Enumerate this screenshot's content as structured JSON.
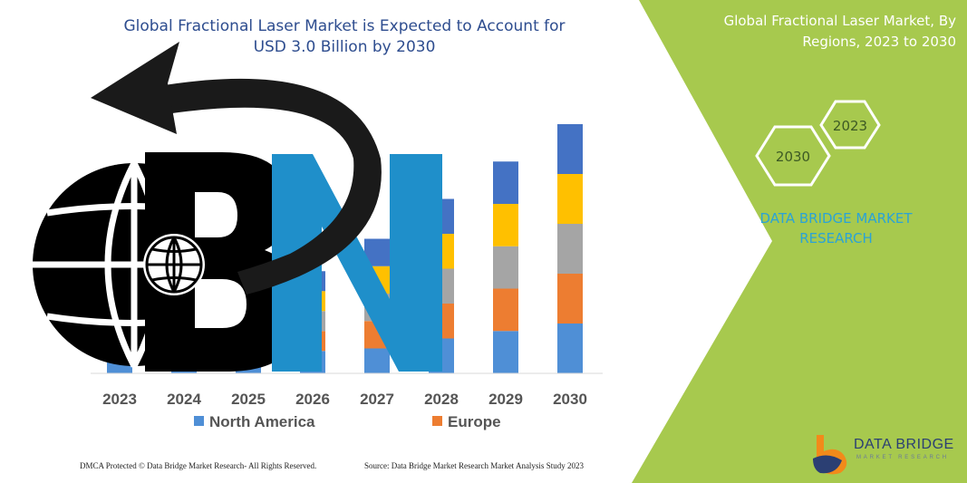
{
  "header": {
    "title": "Global Fractional Laser Market is Expected to Account for USD 3.0 Billion by 2030"
  },
  "right_panel": {
    "title": "Global Fractional Laser Market, By Regions, 2023 to 2030",
    "hex_start": "2023",
    "hex_end": "2030",
    "brand_text": "DATA BRIDGE MARKET RESEARCH",
    "panel_color": "#a7c94e"
  },
  "chart_data": {
    "type": "bar",
    "stacked": true,
    "categories": [
      "2023",
      "2024",
      "2025",
      "2026",
      "2027",
      "2028",
      "2029",
      "2030"
    ],
    "series": [
      {
        "name": "North America",
        "color": "#4f8fd6",
        "values": [
          0.3,
          0.35,
          0.4,
          0.45,
          0.5,
          0.7,
          0.85,
          1.0
        ]
      },
      {
        "name": "Europe",
        "color": "#ed7d31",
        "values": [
          0.25,
          0.28,
          0.32,
          0.4,
          0.55,
          0.7,
          0.85,
          1.0
        ]
      },
      {
        "series_color_note": "",
        "name": "",
        "color": "#a5a5a5",
        "values": [
          0.25,
          0.28,
          0.32,
          0.4,
          0.55,
          0.7,
          0.85,
          1.0
        ]
      },
      {
        "name": "",
        "color": "#ffc000",
        "values": [
          0.25,
          0.28,
          0.32,
          0.4,
          0.55,
          0.7,
          0.85,
          1.0
        ]
      },
      {
        "name": "",
        "color": "#4472c4",
        "values": [
          0.25,
          0.28,
          0.32,
          0.4,
          0.55,
          0.7,
          0.85,
          1.0
        ]
      }
    ],
    "legend": [
      "North America",
      "Europe"
    ],
    "legend_position": "bottom"
  },
  "footer": {
    "left": "DMCA Protected © Data Bridge Market Research- All Rights Reserved.",
    "right": "Source: Data Bridge Market Research Market Analysis Study 2023"
  },
  "logo": {
    "name": "DATA BRIDGE",
    "sub": "MARKET RESEARCH"
  }
}
